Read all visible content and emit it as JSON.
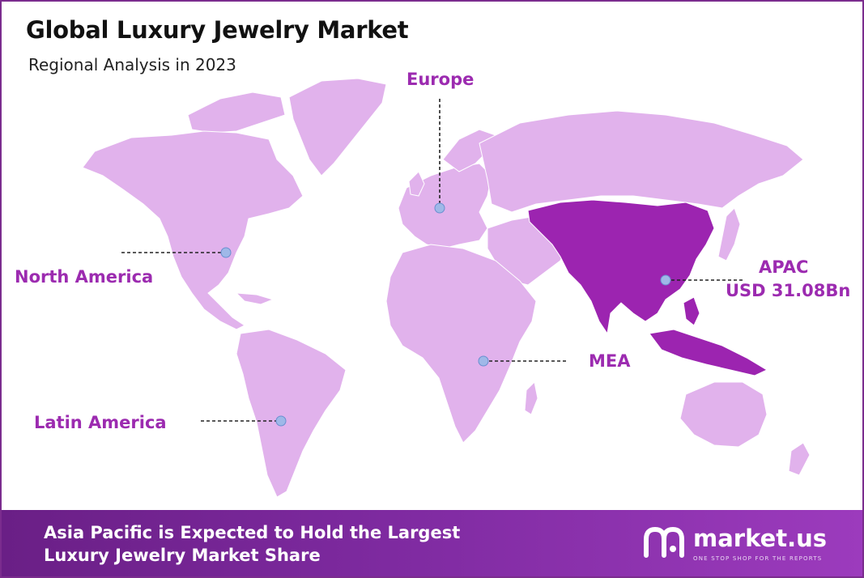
{
  "header": {
    "title": "Global Luxury Jewelry Market",
    "subtitle": "Regional Analysis in 2023"
  },
  "regions": {
    "europe": {
      "label": "Europe"
    },
    "north_america": {
      "label": "North America"
    },
    "latin_america": {
      "label": "Latin America"
    },
    "mea": {
      "label": "MEA"
    },
    "apac": {
      "label": "APAC",
      "value": "USD 31.08Bn"
    }
  },
  "footer": {
    "line1": "Asia Pacific is Expected to Hold the Largest",
    "line2": "Luxury Jewelry Market Share"
  },
  "brand": {
    "name": "market.us",
    "tagline": "ONE STOP SHOP FOR THE REPORTS"
  },
  "colors": {
    "land": "#e1b2ec",
    "highlight": "#9c24b0",
    "label": "#9c2bb0",
    "marker": "#9fb8e8",
    "frame": "#7b2c8e"
  }
}
